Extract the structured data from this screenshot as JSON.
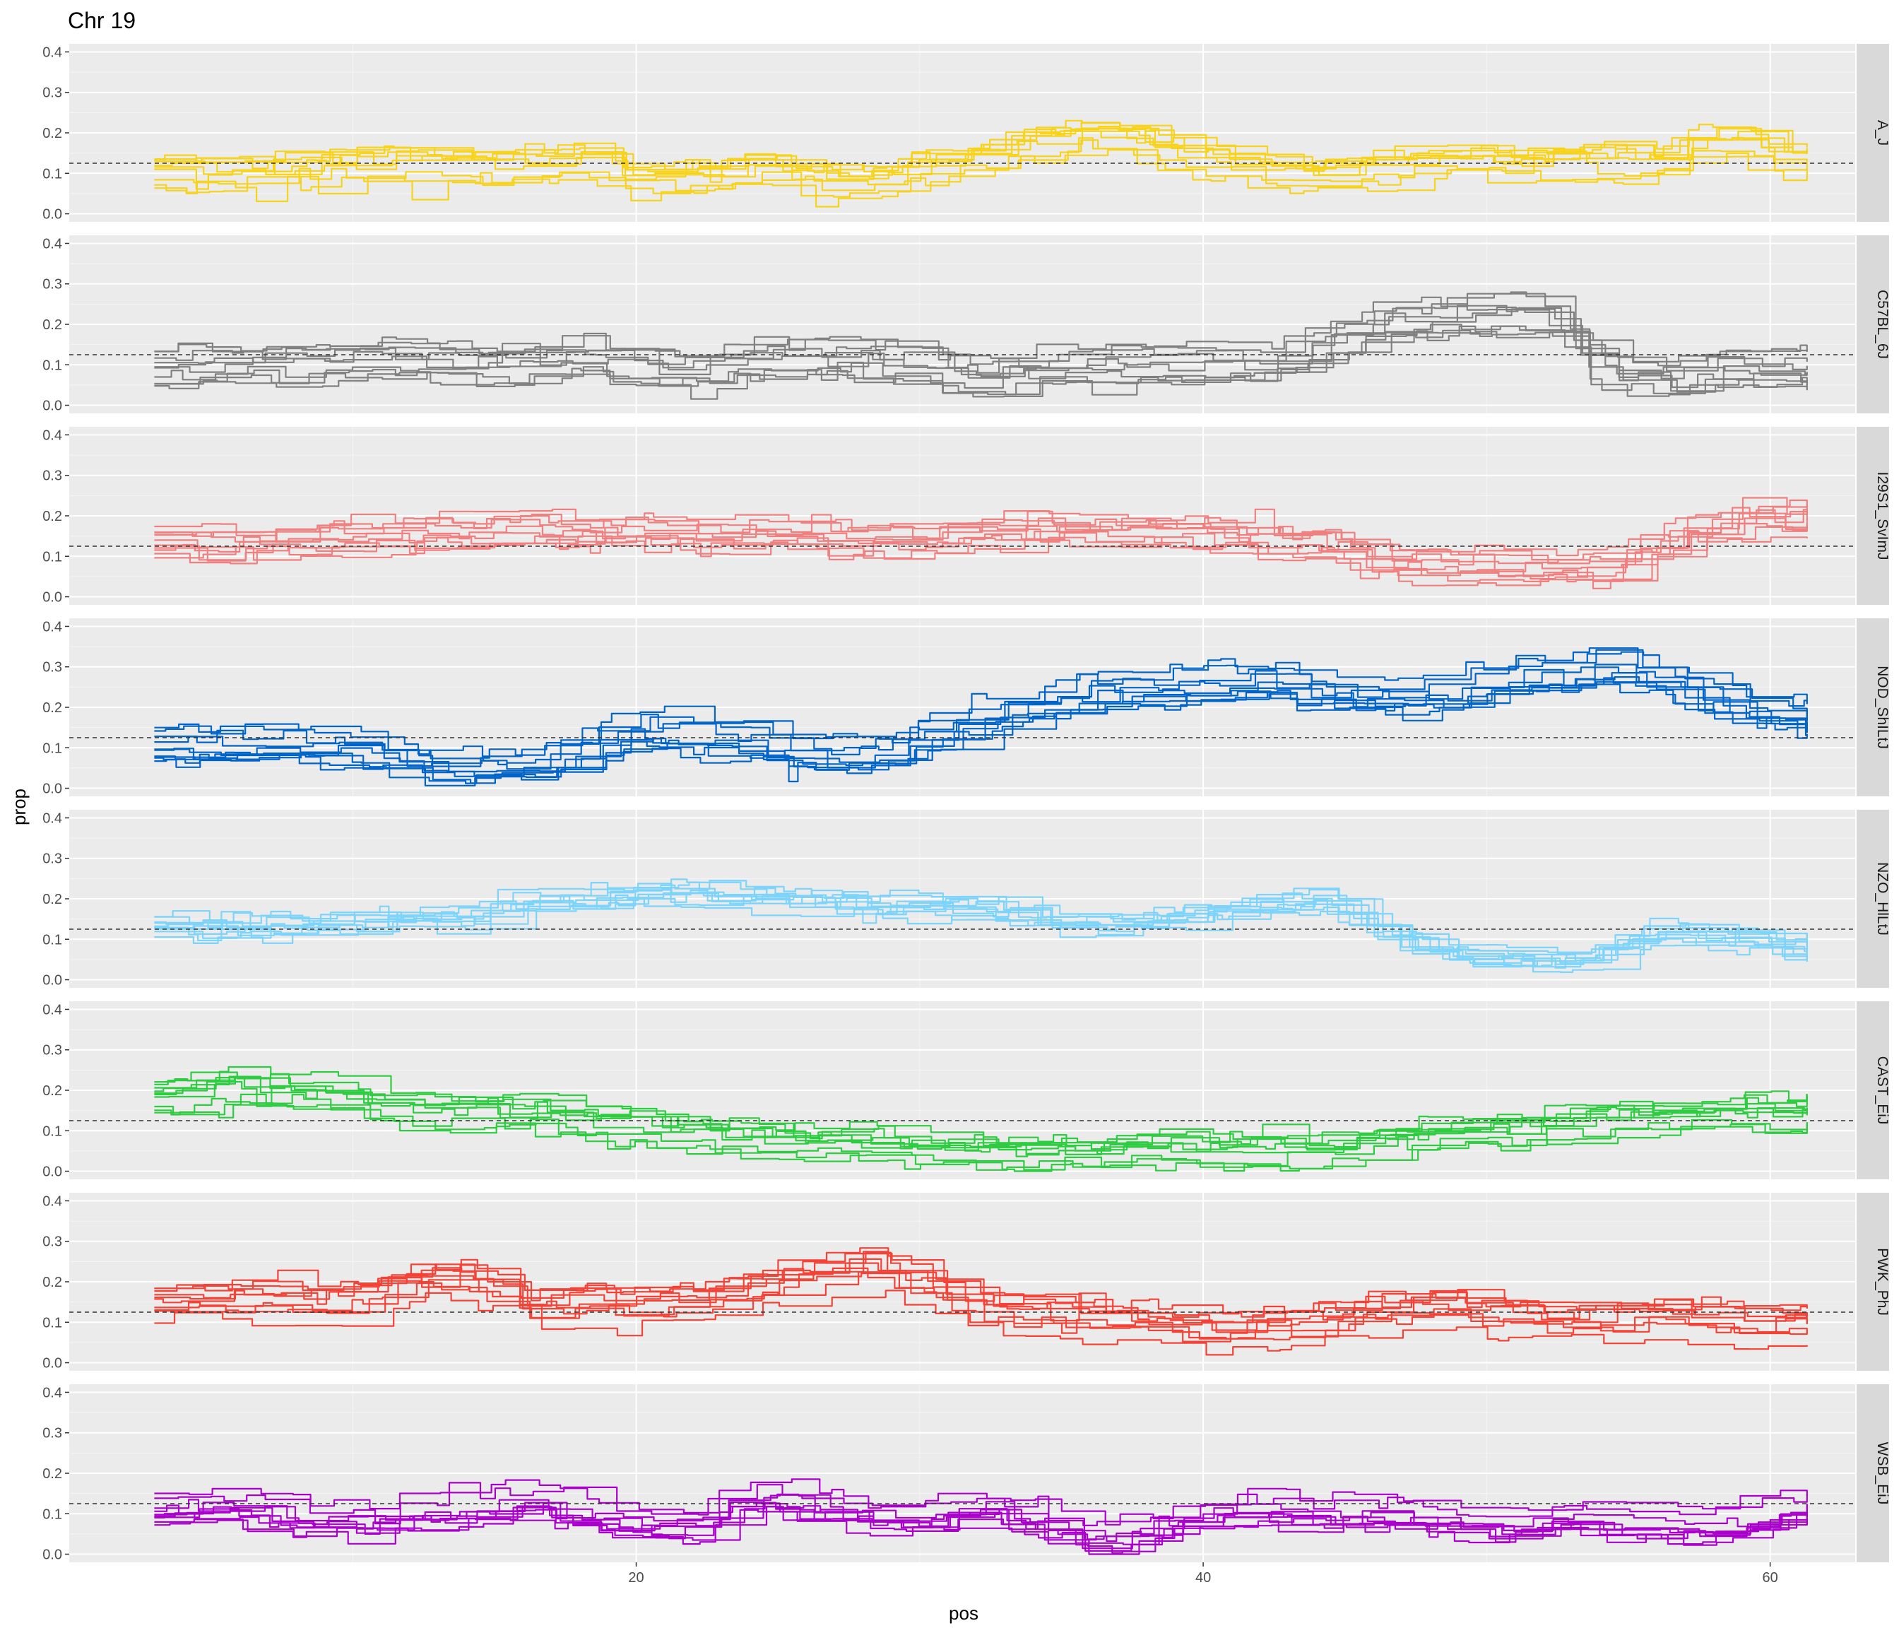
{
  "chart_data": {
    "type": "line",
    "title": "Chr 19",
    "xlabel": "pos",
    "ylabel": "prop",
    "xlim": [
      0,
      63
    ],
    "ylim": [
      -0.02,
      0.42
    ],
    "x_ticks": [
      20,
      40,
      60
    ],
    "x_tick_labels": [
      "20",
      "40",
      "60"
    ],
    "y_ticks": [
      0.0,
      0.1,
      0.2,
      0.3,
      0.4
    ],
    "y_tick_labels": [
      "0.0",
      "0.1",
      "0.2",
      "0.3",
      "0.4"
    ],
    "reference_line": 0.125,
    "grid": true,
    "facet_by": "strain",
    "panels": [
      {
        "name": "A_J",
        "color": "#F7D31C",
        "x": [
          3,
          5,
          8,
          11,
          14,
          16,
          18,
          20,
          22,
          24,
          26,
          28,
          30,
          32,
          34,
          36,
          38,
          40,
          42,
          44,
          46,
          48,
          50,
          52,
          54,
          56,
          58,
          60,
          61.3
        ],
        "values": [
          0.1,
          0.09,
          0.11,
          0.12,
          0.11,
          0.12,
          0.13,
          0.08,
          0.09,
          0.1,
          0.08,
          0.07,
          0.11,
          0.14,
          0.17,
          0.19,
          0.16,
          0.12,
          0.1,
          0.09,
          0.11,
          0.13,
          0.13,
          0.11,
          0.13,
          0.12,
          0.19,
          0.14,
          0.13
        ]
      },
      {
        "name": "C57BL_6J",
        "color": "#808080",
        "x": [
          3,
          5,
          8,
          10,
          12,
          14,
          16,
          18,
          20,
          22,
          24,
          26,
          28,
          30,
          32,
          34,
          36,
          38,
          40,
          42,
          44,
          46,
          48,
          50,
          52,
          54,
          56,
          58,
          60,
          61.3
        ],
        "values": [
          0.09,
          0.1,
          0.1,
          0.11,
          0.11,
          0.1,
          0.1,
          0.12,
          0.09,
          0.09,
          0.11,
          0.11,
          0.11,
          0.1,
          0.06,
          0.09,
          0.1,
          0.1,
          0.1,
          0.1,
          0.14,
          0.2,
          0.21,
          0.22,
          0.22,
          0.09,
          0.07,
          0.09,
          0.08,
          0.09
        ]
      },
      {
        "name": "I29S1_SvImJ",
        "color": "#F08080",
        "x": [
          3,
          5,
          8,
          11,
          14,
          16,
          18,
          20,
          22,
          24,
          26,
          28,
          30,
          32,
          34,
          36,
          38,
          40,
          42,
          44,
          46,
          48,
          50,
          52,
          54,
          56,
          58,
          60,
          61.3
        ],
        "values": [
          0.13,
          0.12,
          0.13,
          0.15,
          0.15,
          0.16,
          0.15,
          0.16,
          0.14,
          0.15,
          0.14,
          0.13,
          0.13,
          0.15,
          0.17,
          0.15,
          0.16,
          0.15,
          0.13,
          0.13,
          0.08,
          0.07,
          0.07,
          0.06,
          0.07,
          0.12,
          0.18,
          0.19,
          0.19
        ]
      },
      {
        "name": "NOD_ShILtJ",
        "color": "#0064C9",
        "x": [
          3,
          5,
          8,
          10,
          12,
          14,
          16,
          18,
          20,
          22,
          24,
          26,
          28,
          30,
          32,
          34,
          36,
          38,
          40,
          42,
          44,
          46,
          48,
          50,
          52,
          54,
          56,
          58,
          60,
          61.3
        ],
        "values": [
          0.11,
          0.11,
          0.11,
          0.1,
          0.06,
          0.05,
          0.06,
          0.1,
          0.15,
          0.13,
          0.12,
          0.08,
          0.08,
          0.13,
          0.17,
          0.21,
          0.24,
          0.25,
          0.26,
          0.27,
          0.24,
          0.22,
          0.23,
          0.27,
          0.28,
          0.31,
          0.27,
          0.22,
          0.19,
          0.17
        ]
      },
      {
        "name": "NZO_HlLtJ",
        "color": "#7DD4FA",
        "x": [
          3,
          5,
          8,
          11,
          14,
          16,
          18,
          20,
          22,
          24,
          26,
          28,
          30,
          32,
          34,
          36,
          38,
          40,
          42,
          44,
          46,
          48,
          50,
          52,
          54,
          56,
          58,
          60,
          61.3
        ],
        "values": [
          0.13,
          0.12,
          0.13,
          0.14,
          0.15,
          0.18,
          0.19,
          0.21,
          0.21,
          0.2,
          0.19,
          0.18,
          0.18,
          0.17,
          0.15,
          0.13,
          0.14,
          0.16,
          0.19,
          0.19,
          0.12,
          0.06,
          0.05,
          0.04,
          0.06,
          0.12,
          0.1,
          0.08,
          0.07
        ]
      },
      {
        "name": "CAST_EiJ",
        "color": "#2ECC40",
        "x": [
          3,
          5,
          7,
          9,
          11,
          13,
          15,
          17,
          19,
          21,
          23,
          25,
          27,
          29,
          31,
          33,
          35,
          37,
          39,
          41,
          43,
          45,
          47,
          49,
          51,
          53,
          55,
          57,
          59,
          61.3
        ],
        "values": [
          0.18,
          0.2,
          0.2,
          0.19,
          0.15,
          0.14,
          0.14,
          0.13,
          0.11,
          0.1,
          0.08,
          0.07,
          0.07,
          0.06,
          0.04,
          0.04,
          0.04,
          0.05,
          0.05,
          0.05,
          0.05,
          0.05,
          0.09,
          0.09,
          0.1,
          0.12,
          0.13,
          0.14,
          0.14,
          0.14
        ]
      },
      {
        "name": "PWK_PhJ",
        "color": "#F44336",
        "x": [
          3,
          5,
          8,
          10,
          12,
          14,
          16,
          18,
          20,
          22,
          24,
          26,
          28,
          30,
          32,
          34,
          36,
          38,
          40,
          42,
          44,
          46,
          48,
          50,
          52,
          54,
          56,
          58,
          60,
          61.3
        ],
        "values": [
          0.14,
          0.15,
          0.15,
          0.15,
          0.2,
          0.2,
          0.13,
          0.14,
          0.13,
          0.14,
          0.18,
          0.21,
          0.23,
          0.18,
          0.12,
          0.1,
          0.1,
          0.09,
          0.06,
          0.08,
          0.09,
          0.12,
          0.13,
          0.11,
          0.09,
          0.1,
          0.11,
          0.1,
          0.08,
          0.09
        ]
      },
      {
        "name": "WSB_EiJ",
        "color": "#AA00CC",
        "x": [
          3,
          5,
          8,
          10,
          12,
          14,
          16,
          18,
          20,
          22,
          24,
          26,
          28,
          30,
          32,
          34,
          36,
          38,
          40,
          42,
          44,
          46,
          48,
          50,
          52,
          54,
          56,
          58,
          60,
          61.3
        ],
        "values": [
          0.11,
          0.12,
          0.09,
          0.08,
          0.1,
          0.11,
          0.14,
          0.09,
          0.08,
          0.07,
          0.15,
          0.12,
          0.09,
          0.09,
          0.12,
          0.08,
          0.04,
          0.06,
          0.1,
          0.11,
          0.1,
          0.1,
          0.09,
          0.06,
          0.09,
          0.08,
          0.07,
          0.07,
          0.1,
          0.11
        ]
      }
    ]
  }
}
